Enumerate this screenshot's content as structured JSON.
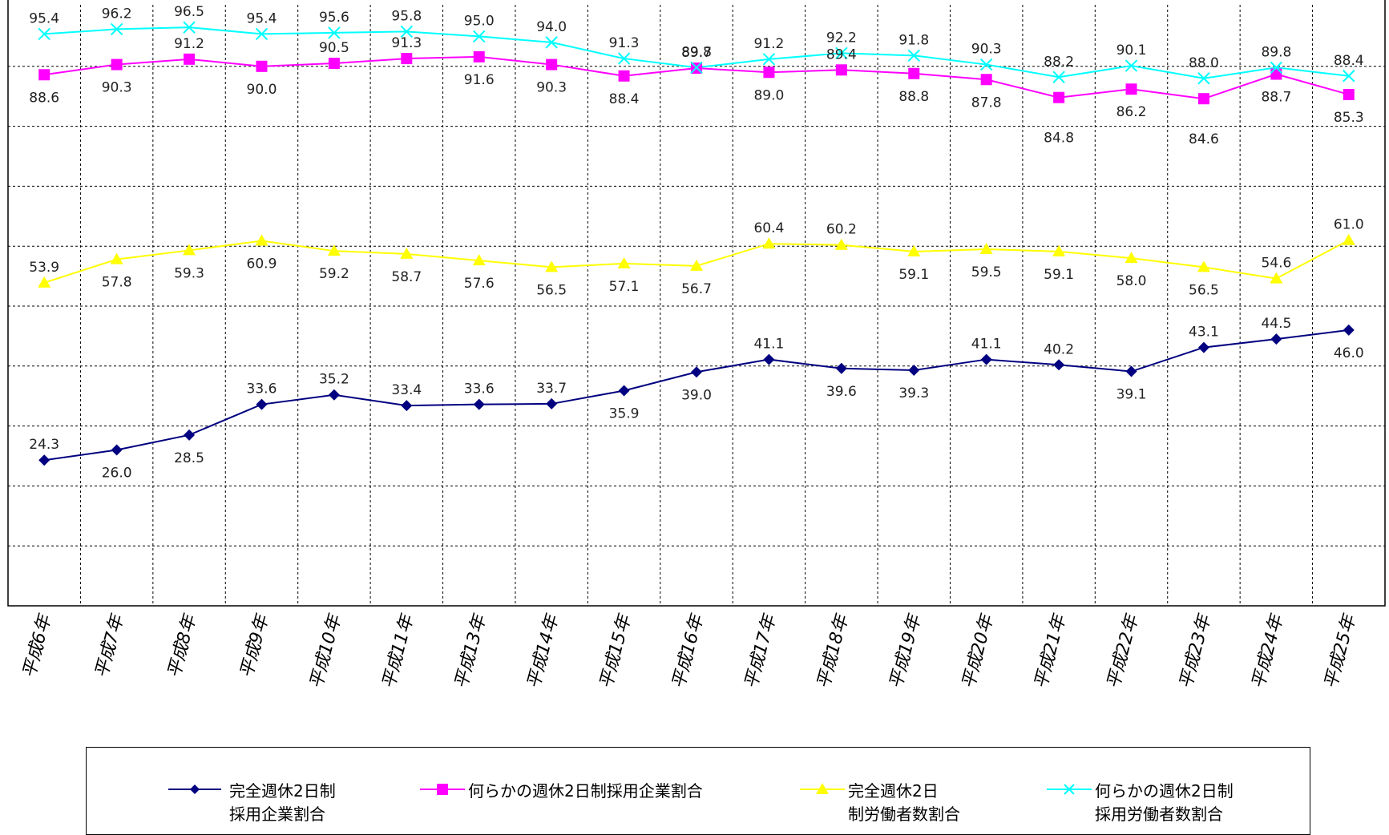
{
  "chart_data": {
    "type": "line",
    "categories": [
      "平成6年",
      "平成7年",
      "平成8年",
      "平成9年",
      "平成10年",
      "平成11年",
      "平成13年",
      "平成14年",
      "平成15年",
      "平成16年",
      "平成17年",
      "平成18年",
      "平成19年",
      "平成20年",
      "平成21年",
      "平成22年",
      "平成23年",
      "平成24年",
      "平成25年"
    ],
    "series": [
      {
        "name": "完全週休2日制\n採用企業割合",
        "color": "#000080",
        "marker": "diamond",
        "values": [
          24.3,
          26.0,
          28.5,
          33.6,
          35.2,
          33.4,
          33.6,
          33.7,
          35.9,
          39.0,
          41.1,
          39.6,
          39.3,
          41.1,
          40.2,
          39.1,
          43.1,
          44.5,
          46.0
        ]
      },
      {
        "name": "何らかの週休2日制採用企業割合",
        "color": "#ff00ff",
        "marker": "square",
        "values": [
          88.6,
          90.3,
          91.2,
          90.0,
          90.5,
          91.3,
          91.6,
          90.3,
          88.4,
          89.7,
          89.0,
          89.4,
          88.8,
          87.8,
          84.8,
          86.2,
          84.6,
          88.7,
          85.3
        ]
      },
      {
        "name": "完全週休2日\n制労働者数割合",
        "color": "#ffff00",
        "marker": "triangle",
        "values": [
          53.9,
          57.8,
          59.3,
          60.9,
          59.2,
          58.7,
          57.6,
          56.5,
          57.1,
          56.7,
          60.4,
          60.2,
          59.1,
          59.5,
          59.1,
          58.0,
          56.5,
          54.6,
          61.0
        ]
      },
      {
        "name": "何らかの週休2日制\n採用労働者数割合",
        "color": "#00ffff",
        "marker": "x",
        "values": [
          95.4,
          96.2,
          96.5,
          95.4,
          95.6,
          95.8,
          95.0,
          94.0,
          91.3,
          89.8,
          91.2,
          92.2,
          91.8,
          90.3,
          88.2,
          90.1,
          88.0,
          89.8,
          88.4
        ]
      }
    ],
    "ylim": [
      0,
      100
    ],
    "grid": true,
    "legend_position": "bottom"
  }
}
